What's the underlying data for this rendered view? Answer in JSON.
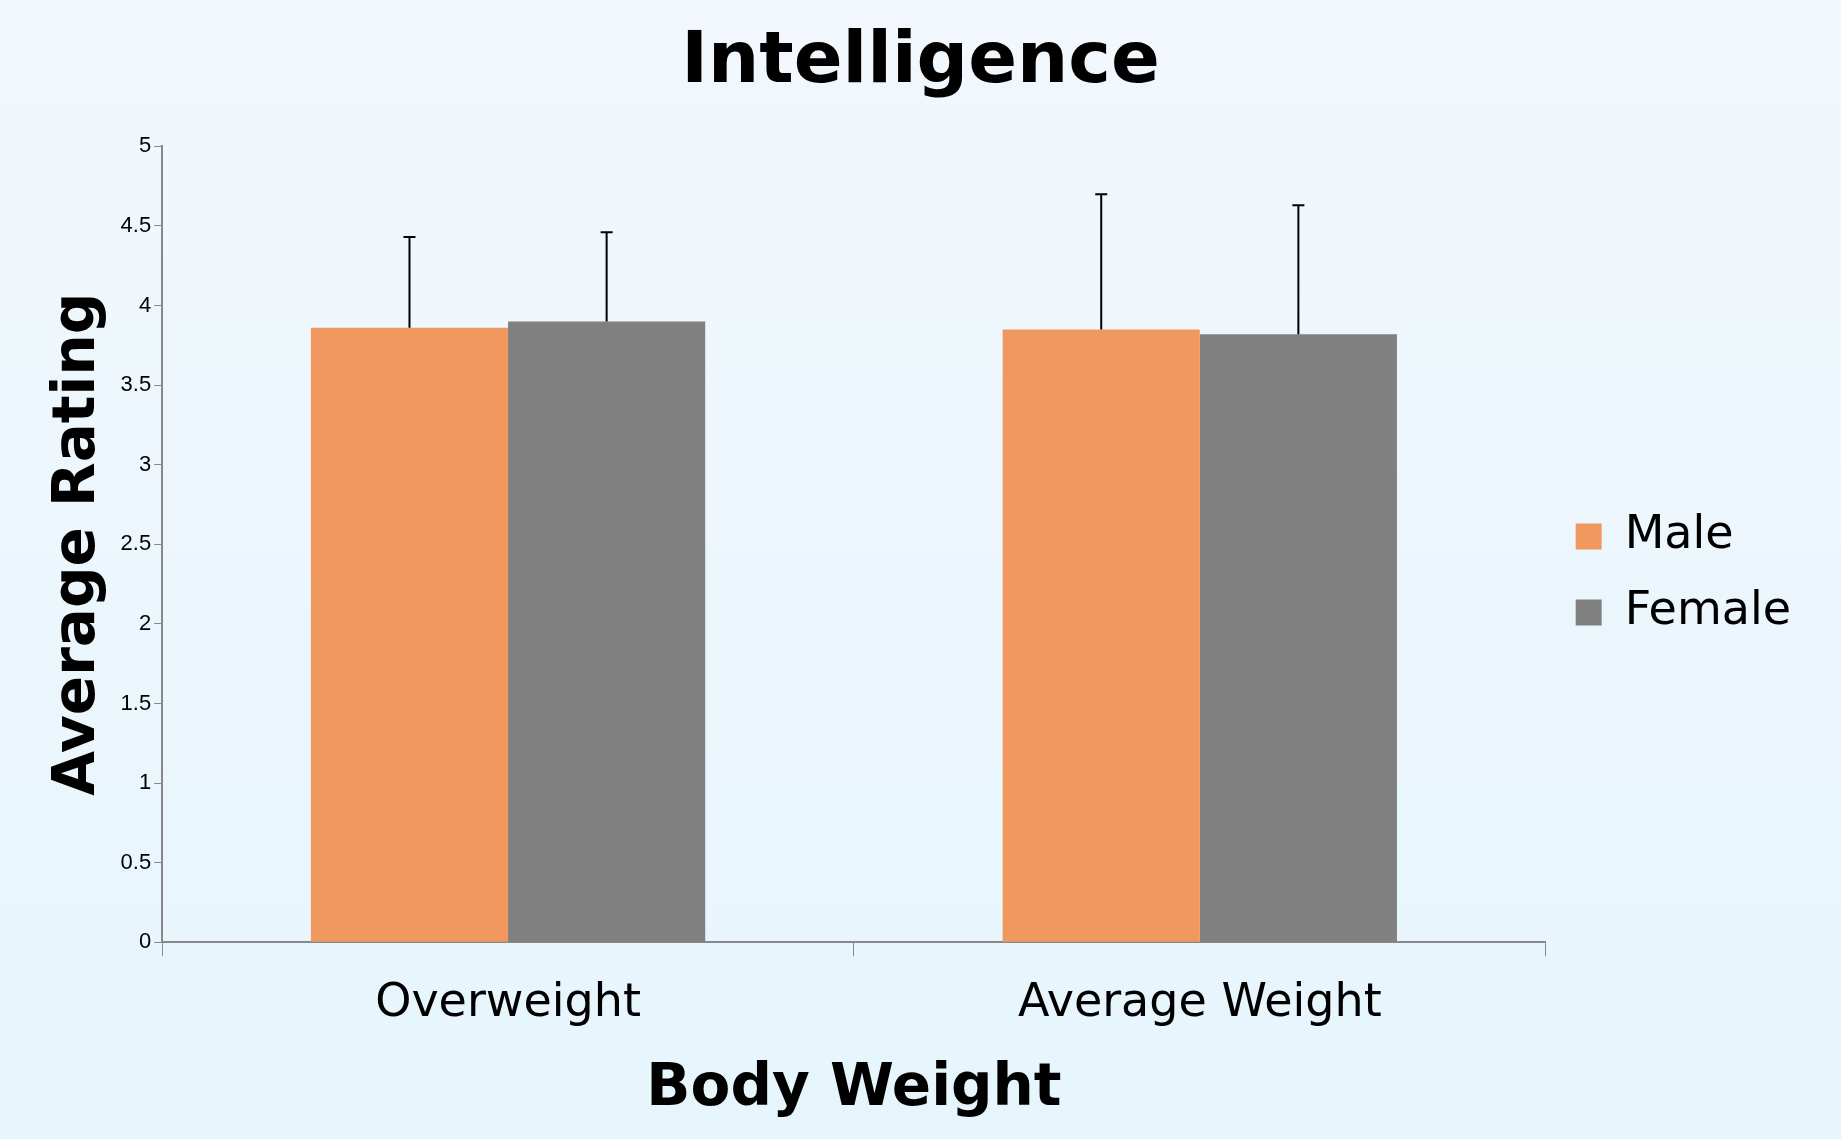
{
  "chart_data": {
    "type": "bar",
    "title": "Intelligence",
    "xlabel": "Body Weight",
    "ylabel": "Average Rating",
    "categories": [
      "Overweight",
      "Average Weight"
    ],
    "series": [
      {
        "name": "Male",
        "color": "#f0985e",
        "values": [
          3.86,
          3.85
        ],
        "errors": [
          [
            3.86,
            4.43
          ],
          [
            3.85,
            4.7
          ]
        ]
      },
      {
        "name": "Female",
        "color": "#808080",
        "values": [
          3.9,
          3.82
        ],
        "errors": [
          [
            3.9,
            4.46
          ],
          [
            3.82,
            4.63
          ]
        ]
      }
    ],
    "ylim": [
      0,
      5
    ],
    "yticks": [
      0,
      0.5,
      1,
      1.5,
      2,
      2.5,
      3,
      3.5,
      4,
      4.5,
      5
    ],
    "grid": false,
    "legend": "right"
  }
}
